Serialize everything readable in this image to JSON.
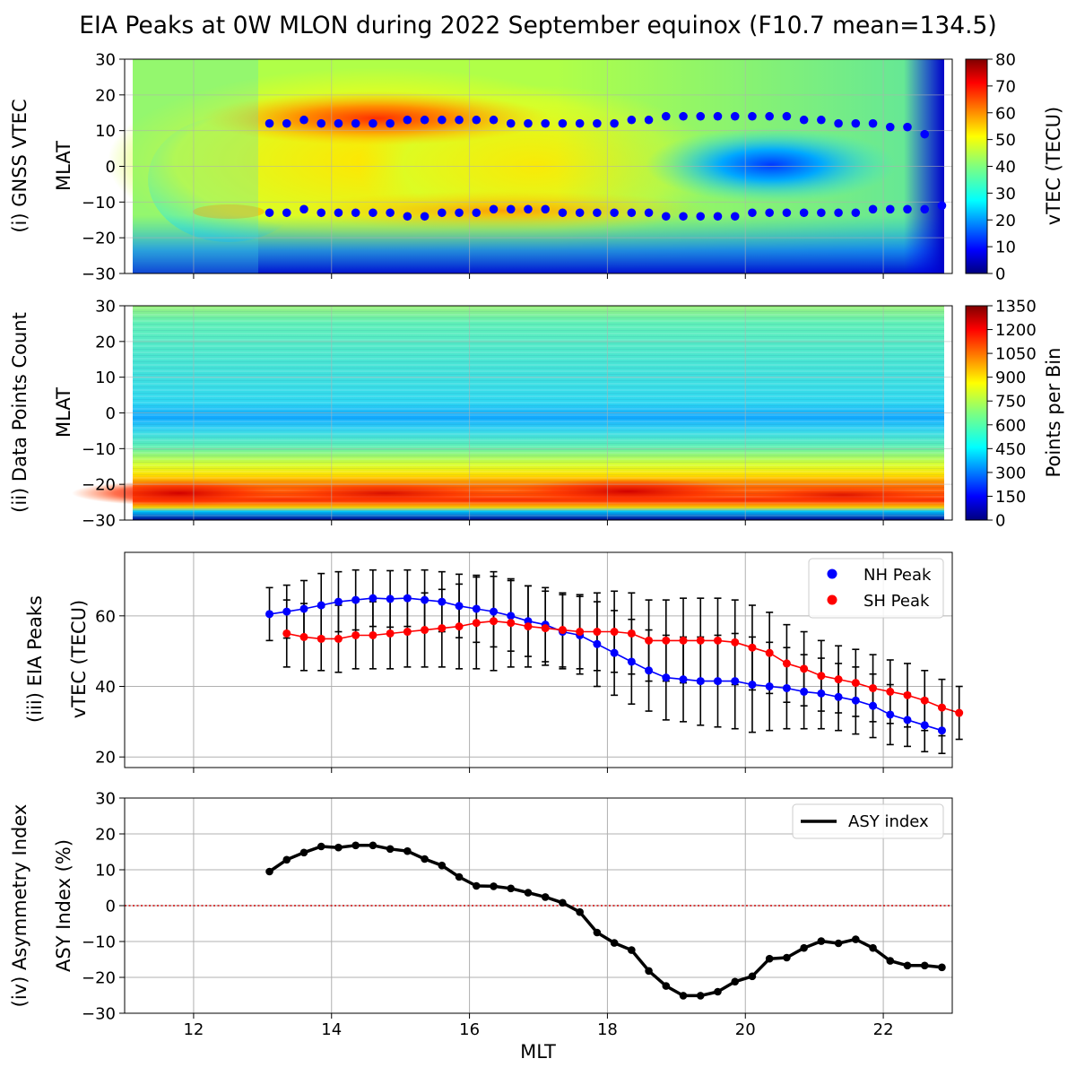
{
  "title": "EIA Peaks at 0W MLON during 2022 September equinox (F10.7 mean=134.5)",
  "colors": {
    "nh": "#0000ff",
    "sh": "#ff0000",
    "asy": "#000000",
    "zero_line": "#cc0000",
    "grid": "#b0b0b0"
  },
  "chart_data": [
    {
      "id": "vtec",
      "type": "heatmap",
      "side_label": "(i) GNSS VTEC",
      "ylabel": "MLAT",
      "ylim": [
        -30,
        30
      ],
      "yticks": [
        "−30",
        "−20",
        "−10",
        "0",
        "10",
        "20",
        "30"
      ],
      "xlim": [
        11,
        23
      ],
      "colorbar": {
        "label": "vTEC (TECU)",
        "range": [
          0,
          80
        ],
        "ticks": [
          "0",
          "10",
          "20",
          "30",
          "40",
          "50",
          "60",
          "70",
          "80"
        ],
        "colormap": "jet"
      },
      "grid": true,
      "nh_peak_mlat": [
        12,
        12,
        13,
        12,
        12,
        12,
        12,
        12,
        13,
        13,
        13,
        13,
        13,
        13,
        12,
        12,
        12,
        12,
        12,
        12,
        12,
        13,
        13,
        14,
        14,
        14,
        14,
        14,
        14,
        14,
        14,
        13,
        13,
        12,
        12,
        12,
        11,
        11,
        9
      ],
      "sh_peak_mlat": [
        -13,
        -13,
        -12,
        -13,
        -13,
        -13,
        -13,
        -13,
        -14,
        -14,
        -13,
        -13,
        -13,
        -12,
        -12,
        -12,
        -12,
        -13,
        -13,
        -13,
        -13,
        -13,
        -13,
        -14,
        -14,
        -14,
        -14,
        -14,
        -13,
        -13,
        -13,
        -13,
        -13,
        -13,
        -13,
        -12,
        -12,
        -12,
        -12,
        -11
      ]
    },
    {
      "id": "counts",
      "type": "heatmap",
      "side_label": "(ii) Data Points Count",
      "ylabel": "MLAT",
      "ylim": [
        -30,
        30
      ],
      "yticks": [
        "−30",
        "−20",
        "−10",
        "0",
        "10",
        "20",
        "30"
      ],
      "xlim": [
        11,
        23
      ],
      "colorbar": {
        "label": "Points per Bin",
        "range": [
          0,
          1350
        ],
        "ticks": [
          "0",
          "150",
          "300",
          "450",
          "600",
          "750",
          "900",
          "1050",
          "1200",
          "1350"
        ],
        "colormap": "jet"
      },
      "grid": true
    },
    {
      "id": "peaks",
      "type": "line",
      "side_label": "(iii) EIA Peaks",
      "ylabel": "vTEC (TECU)",
      "ylim": [
        17,
        78
      ],
      "yticks": [
        20,
        40,
        60
      ],
      "xlim": [
        11,
        23
      ],
      "grid": true,
      "legend_position": "top-right",
      "x": [
        13.1,
        13.35,
        13.6,
        13.85,
        14.1,
        14.35,
        14.6,
        14.85,
        15.1,
        15.35,
        15.6,
        15.85,
        16.1,
        16.35,
        16.6,
        16.85,
        17.1,
        17.35,
        17.6,
        17.85,
        18.1,
        18.35,
        18.6,
        18.85,
        19.1,
        19.35,
        19.6,
        19.85,
        20.1,
        20.35,
        20.6,
        20.85,
        21.1,
        21.35,
        21.6,
        21.85,
        22.1,
        22.35,
        22.6,
        22.85,
        23.1
      ],
      "series": [
        {
          "name": "NH Peak",
          "values": [
            60.5,
            61.2,
            62,
            63,
            64,
            64.5,
            65,
            64.8,
            65,
            64.5,
            64,
            62.8,
            62,
            61.2,
            60,
            58.5,
            57.5,
            55.5,
            54.5,
            52,
            49.5,
            47,
            44.5,
            42.5,
            42,
            41.5,
            41.5,
            41.5,
            40.5,
            40,
            39.5,
            38.5,
            38,
            37,
            36,
            34.5,
            32,
            30.5,
            29,
            27.5,
            null
          ],
          "err": [
            7.5,
            7.5,
            8,
            9,
            8.5,
            8.5,
            8,
            8,
            8,
            8.5,
            8.5,
            9,
            9.5,
            10,
            10,
            10,
            10.5,
            10.5,
            11,
            12,
            12,
            12,
            11.5,
            12,
            12,
            12.5,
            13,
            13.5,
            13.5,
            12.5,
            11.5,
            10.5,
            10,
            9.5,
            9.5,
            9,
            8.5,
            7.5,
            7.5,
            6.5,
            null
          ]
        },
        {
          "name": "SH Peak",
          "values": [
            null,
            55,
            54,
            53.5,
            53.5,
            54.5,
            54.5,
            55,
            55.5,
            56,
            56.5,
            57,
            58,
            58.5,
            58,
            57,
            56.5,
            56,
            55.5,
            55.5,
            55.5,
            55,
            53,
            53,
            53,
            53,
            53,
            52.5,
            51,
            49.5,
            46.5,
            45,
            43,
            42,
            41,
            39.5,
            38.5,
            37.5,
            36,
            34,
            32.5
          ],
          "err": [
            null,
            9.5,
            9.5,
            9,
            9.5,
            9.5,
            9.5,
            10,
            10,
            10.5,
            11,
            12,
            13,
            14,
            12.5,
            11.5,
            10.5,
            10.5,
            10.5,
            11,
            11.5,
            11.5,
            11.5,
            11.5,
            12,
            12,
            12,
            12,
            12,
            11.5,
            11,
            10.5,
            10,
            9.5,
            9.5,
            9.5,
            9,
            9,
            8.5,
            8,
            7.5
          ]
        }
      ]
    },
    {
      "id": "asy",
      "type": "line",
      "side_label": "(iv) Asymmetry Index",
      "ylabel": "ASY Index (%)",
      "xlabel": "MLT",
      "ylim": [
        -30,
        30
      ],
      "yticks": [
        "−30",
        "−20",
        "−10",
        "0",
        "10",
        "20",
        "30"
      ],
      "xlim": [
        11,
        23
      ],
      "xticks": [
        "12",
        "14",
        "16",
        "18",
        "20",
        "22"
      ],
      "grid": true,
      "legend_position": "top-right",
      "reference_line": 0,
      "x": [
        13.1,
        13.35,
        13.6,
        13.85,
        14.1,
        14.35,
        14.6,
        14.85,
        15.1,
        15.35,
        15.6,
        15.85,
        16.1,
        16.35,
        16.6,
        16.85,
        17.1,
        17.35,
        17.6,
        17.85,
        18.1,
        18.35,
        18.6,
        18.85,
        19.1,
        19.35,
        19.6,
        19.85,
        20.1,
        20.35,
        20.6,
        20.85,
        21.1,
        21.35,
        21.6,
        21.85,
        22.1,
        22.35,
        22.6,
        22.85
      ],
      "series": [
        {
          "name": "ASY index",
          "values": [
            9.5,
            12.8,
            14.8,
            16.5,
            16.2,
            16.8,
            16.8,
            15.8,
            15.2,
            13,
            11.2,
            8,
            5.5,
            5.4,
            4.8,
            3.6,
            2.4,
            0.8,
            -1.8,
            -7.5,
            -10.4,
            -12.4,
            -18.2,
            -22.4,
            -25.1,
            -25.1,
            -24,
            -21.2,
            -19.7,
            -14.8,
            -14.5,
            -11.8,
            -9.9,
            -10.5,
            -9.4,
            -11.8,
            -15.4,
            -16.7,
            -16.7,
            -17.2
          ]
        }
      ]
    }
  ]
}
